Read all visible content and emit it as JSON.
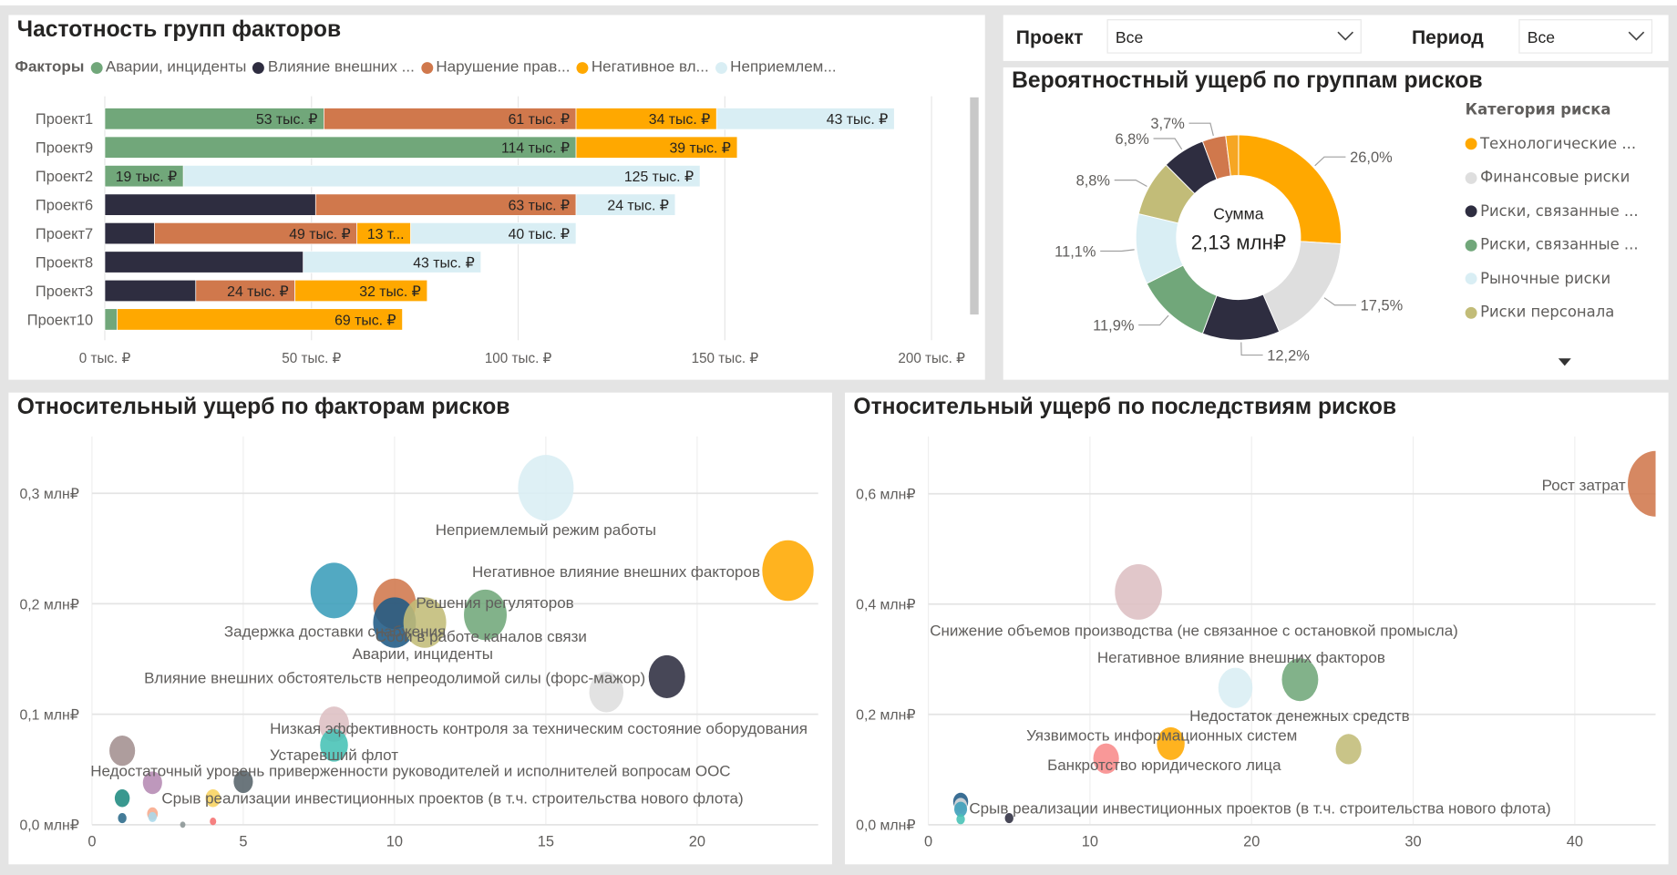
{
  "filters": {
    "project": {
      "label": "Проект",
      "value": "Все"
    },
    "period": {
      "label": "Период",
      "value": "Все"
    }
  },
  "bar_panel": {
    "title": "Частотность групп факторов",
    "legend_title": "Факторы",
    "legend": [
      {
        "label": "Аварии, инциденты",
        "color": "#71A77A"
      },
      {
        "label": "Влияние внешних ...",
        "color": "#2E2D40"
      },
      {
        "label": "Нарушение прав...",
        "color": "#D0784C"
      },
      {
        "label": "Негативное вл...",
        "color": "#FFA800"
      },
      {
        "label": "Неприемлем...",
        "color": "#D9EEF4"
      }
    ]
  },
  "donut_panel": {
    "title": "Вероятностный ущерб по группам рисков",
    "center_label": "Сумма",
    "center_value": "2,13 млн₽",
    "legend_title": "Категория риска",
    "legend": [
      {
        "label": "Технологические ...",
        "color": "#FFA800"
      },
      {
        "label": "Финансовые риски",
        "color": "#DEDEDE"
      },
      {
        "label": "Риски, связанные ...",
        "color": "#2E2D40"
      },
      {
        "label": "Риски, связанные ...",
        "color": "#71A77A"
      },
      {
        "label": "Рыночные риски",
        "color": "#D9EEF4"
      },
      {
        "label": "Риски персонала",
        "color": "#C2BC78"
      }
    ]
  },
  "bubble1_panel": {
    "title": "Относительный ущерб по факторам рисков"
  },
  "bubble2_panel": {
    "title": "Относительный ущерб по последствиям рисков"
  },
  "chart_data": [
    {
      "type": "bar",
      "orientation": "horizontal-stacked",
      "categories": [
        "Проект1",
        "Проект9",
        "Проект2",
        "Проект6",
        "Проект7",
        "Проект8",
        "Проект3",
        "Проект10"
      ],
      "series": [
        {
          "name": "Аварии, инциденты",
          "color": "#71A77A",
          "values": [
            53,
            114,
            19,
            0,
            0,
            0,
            0,
            3
          ],
          "labels": [
            "53 тыс. ₽",
            "114 тыс. ₽",
            "19 тыс. ₽",
            null,
            null,
            null,
            null,
            null
          ]
        },
        {
          "name": "Влияние внешних ...",
          "color": "#2E2D40",
          "values": [
            0,
            0,
            0,
            51,
            12,
            48,
            22,
            0
          ],
          "labels": [
            null,
            null,
            null,
            null,
            null,
            null,
            null,
            null
          ]
        },
        {
          "name": "Нарушение прав...",
          "color": "#D0784C",
          "values": [
            61,
            0,
            0,
            63,
            49,
            0,
            24,
            0
          ],
          "labels": [
            "61 тыс. ₽",
            null,
            null,
            "63 тыс. ₽",
            "49 тыс. ₽",
            null,
            "24 тыс. ₽",
            null
          ]
        },
        {
          "name": "Негативное вл...",
          "color": "#FFA800",
          "values": [
            34,
            39,
            0,
            0,
            13,
            0,
            32,
            69
          ],
          "labels": [
            "34 тыс. ₽",
            "39 тыс. ₽",
            null,
            null,
            "13 т...",
            null,
            "32 тыс. ₽",
            "69 тыс. ₽"
          ]
        },
        {
          "name": "Неприемлем...",
          "color": "#D9EEF4",
          "values": [
            43,
            0,
            125,
            24,
            40,
            43,
            0,
            0
          ],
          "labels": [
            "43 тыс. ₽",
            null,
            "125 тыс. ₽",
            "24 тыс. ₽",
            "40 тыс. ₽",
            "43 тыс. ₽",
            null,
            null
          ]
        }
      ],
      "xlim": [
        0,
        200
      ],
      "xticks": [
        0,
        50,
        100,
        150,
        200
      ],
      "xtick_labels": [
        "0 тыс. ₽",
        "50 тыс. ₽",
        "100 тыс. ₽",
        "150 тыс. ₽",
        "200 тыс. ₽"
      ],
      "grid": true
    },
    {
      "type": "pie",
      "donut": true,
      "slices": [
        {
          "value": 26.0,
          "label": "26,0%",
          "color": "#FFA800"
        },
        {
          "value": 17.5,
          "label": "17,5%",
          "color": "#DEDEDE"
        },
        {
          "value": 12.2,
          "label": "12,2%",
          "color": "#2E2D40"
        },
        {
          "value": 11.9,
          "label": "11,9%",
          "color": "#71A77A"
        },
        {
          "value": 11.1,
          "label": "11,1%",
          "color": "#D9EEF4"
        },
        {
          "value": 8.8,
          "label": "8,8%",
          "color": "#C2BC78"
        },
        {
          "value": 6.8,
          "label": "6,8%",
          "color": "#2E2D40"
        },
        {
          "value": 3.7,
          "label": "3,7%",
          "color": "#D0784C"
        },
        {
          "value": 2.0,
          "label": "",
          "color": "#F6A623"
        }
      ]
    },
    {
      "type": "scatter",
      "bubble": true,
      "xlim": [
        0,
        24
      ],
      "ylim": [
        0,
        0.35
      ],
      "xticks": [
        0,
        5,
        10,
        15,
        20
      ],
      "xtick_labels": [
        "0",
        "5",
        "10",
        "15",
        "20"
      ],
      "yticks": [
        0,
        0.1,
        0.2,
        0.3
      ],
      "ytick_labels": [
        "0,0 млн₽",
        "0,1 млн₽",
        "0,2 млн₽",
        "0,3 млн₽"
      ],
      "grid": true,
      "points": [
        {
          "x": 15,
          "y": 0.305,
          "size": 26,
          "color": "#D9EEF4",
          "label": "Неприемлемый режим работы"
        },
        {
          "x": 23,
          "y": 0.23,
          "size": 24,
          "color": "#FFA800",
          "label": "Негативное влияние внешних факторов"
        },
        {
          "x": 8,
          "y": 0.212,
          "size": 22,
          "color": "#3A9DBA",
          "label": ""
        },
        {
          "x": 10,
          "y": 0.2,
          "size": 20,
          "color": "#D0784C",
          "label": "Решения регуляторов"
        },
        {
          "x": 13,
          "y": 0.19,
          "size": 20,
          "color": "#71A77A",
          "label": "Сбои в работе каналов связи"
        },
        {
          "x": 10,
          "y": 0.183,
          "size": 20,
          "color": "#1F5A85",
          "label": "Задержка доставки снабжения"
        },
        {
          "x": 11,
          "y": 0.183,
          "size": 20,
          "color": "#C2BC78",
          "label": "Аварии, инциденты"
        },
        {
          "x": 17,
          "y": 0.12,
          "size": 16,
          "color": "#DEDEDE",
          "label": ""
        },
        {
          "x": 19,
          "y": 0.134,
          "size": 17,
          "color": "#2E2D40",
          "label": "Влияние внешних обстоятельств непреодолимой силы (форс-мажор)"
        },
        {
          "x": 8,
          "y": 0.091,
          "size": 14,
          "color": "#DDBFC3",
          "label": "Низкая эффективность контроля за техническим состояние оборудования"
        },
        {
          "x": 8,
          "y": 0.072,
          "size": 13,
          "color": "#45C2B5",
          "label": "Устаревший флот"
        },
        {
          "x": 1,
          "y": 0.067,
          "size": 12,
          "color": "#A38F8F",
          "label": ""
        },
        {
          "x": 2,
          "y": 0.038,
          "size": 9,
          "color": "#B58AB3",
          "label": "Недостаточный уровень приверженности руководителей и исполнителей вопросам ООС"
        },
        {
          "x": 5,
          "y": 0.039,
          "size": 9,
          "color": "#56636A",
          "label": ""
        },
        {
          "x": 1,
          "y": 0.024,
          "size": 7,
          "color": "#1E8A80",
          "label": ""
        },
        {
          "x": 4,
          "y": 0.024,
          "size": 7,
          "color": "#F8D35E",
          "label": "Срыв реализации инвестиционных проектов (в т.ч. строительства нового флота)"
        },
        {
          "x": 2,
          "y": 0.01,
          "size": 5,
          "color": "#F8A88A",
          "label": ""
        },
        {
          "x": 2,
          "y": 0.007,
          "size": 4,
          "color": "#A8D8EA",
          "label": ""
        },
        {
          "x": 1,
          "y": 0.006,
          "size": 4,
          "color": "#2A6A8A",
          "label": ""
        },
        {
          "x": 3,
          "y": 0.0,
          "size": 2.5,
          "color": "#8A9494",
          "label": ""
        },
        {
          "x": 4,
          "y": 0.003,
          "size": 3,
          "color": "#F57070",
          "label": ""
        }
      ]
    },
    {
      "type": "scatter",
      "bubble": true,
      "xlim": [
        0,
        45
      ],
      "ylim": [
        0,
        0.7
      ],
      "xticks": [
        0,
        10,
        20,
        30,
        40
      ],
      "xtick_labels": [
        "0",
        "10",
        "20",
        "30",
        "40"
      ],
      "yticks": [
        0,
        0.2,
        0.4,
        0.6
      ],
      "ytick_labels": [
        "0,0 млн₽",
        "0,2 млн₽",
        "0,4 млн₽",
        "0,6 млн₽"
      ],
      "grid": true,
      "points": [
        {
          "x": 45,
          "y": 0.618,
          "size": 26,
          "color": "#D0784C",
          "label": "Рост затрат"
        },
        {
          "x": 13,
          "y": 0.422,
          "size": 22,
          "color": "#DDBFC3",
          "label": "Снижение объемов производства (не связанное с остановкой промысла)"
        },
        {
          "x": 23,
          "y": 0.263,
          "size": 17,
          "color": "#71A77A",
          "label": "Негативное влияние внешних факторов"
        },
        {
          "x": 19,
          "y": 0.248,
          "size": 16,
          "color": "#D9EEF4",
          "label": "Недостаток денежных средств"
        },
        {
          "x": 15,
          "y": 0.147,
          "size": 13,
          "color": "#FFA800",
          "label": "Уязвимость информационных систем"
        },
        {
          "x": 26,
          "y": 0.137,
          "size": 12,
          "color": "#C2BC78",
          "label": ""
        },
        {
          "x": 11,
          "y": 0.12,
          "size": 12,
          "color": "#F88A8A",
          "label": "Банкротство юридического лица"
        },
        {
          "x": 2,
          "y": 0.042,
          "size": 7,
          "color": "#1F5A85",
          "label": ""
        },
        {
          "x": 2,
          "y": 0.035,
          "size": 6,
          "color": "#DEDEDE",
          "label": ""
        },
        {
          "x": 2,
          "y": 0.028,
          "size": 6,
          "color": "#3A9DBA",
          "label": "Срыв реализации инвестиционных проектов (в т.ч. строительства нового флота)"
        },
        {
          "x": 2,
          "y": 0.01,
          "size": 4,
          "color": "#45C2B5",
          "label": ""
        },
        {
          "x": 5,
          "y": 0.012,
          "size": 4,
          "color": "#2E2D40",
          "label": ""
        }
      ]
    }
  ]
}
